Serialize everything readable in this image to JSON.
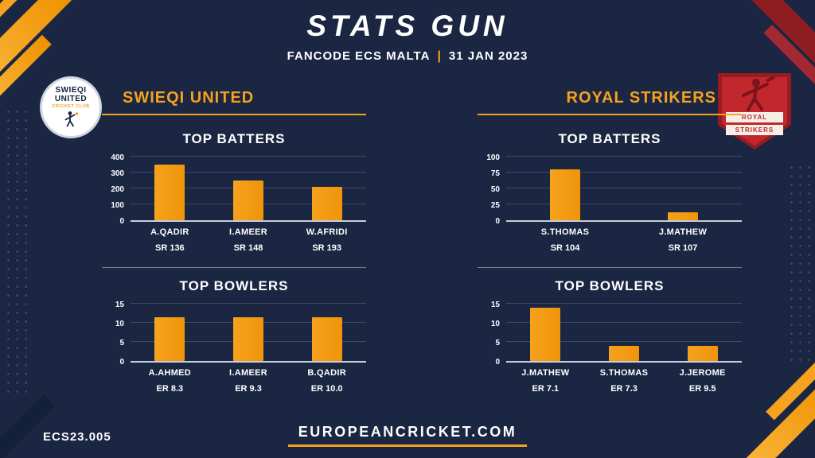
{
  "header": {
    "title": "STATS GUN",
    "event": "FANCODE ECS MALTA",
    "separator": "|",
    "date": "31 JAN 2023"
  },
  "teams": [
    {
      "name": "SWIEQI UNITED",
      "logo_line1": "SWIEQI",
      "logo_line2": "UNITED",
      "logo_line3": "CRICKET CLUB"
    },
    {
      "name": "ROYAL STRIKERS",
      "logo_line1": "ROYAL",
      "logo_line2": "STRIKERS"
    }
  ],
  "chart_data": [
    {
      "type": "bar",
      "team": "SWIEQI UNITED",
      "title": "TOP BATTERS",
      "categories": [
        "A.QADIR",
        "I.AMEER",
        "W.AFRIDI"
      ],
      "values": [
        350,
        250,
        210
      ],
      "sublabels": [
        "SR 136",
        "SR 148",
        "SR 193"
      ],
      "ylim": [
        0,
        400
      ],
      "yticks": [
        0,
        100,
        200,
        300,
        400
      ],
      "bar_color": "#f6a21e",
      "grid": true,
      "legend": "none"
    },
    {
      "type": "bar",
      "team": "SWIEQI UNITED",
      "title": "TOP BOWLERS",
      "categories": [
        "A.AHMED",
        "I.AMEER",
        "B.QADIR"
      ],
      "values": [
        11.5,
        11.5,
        11.5
      ],
      "sublabels": [
        "ER 8.3",
        "ER 9.3",
        "ER 10.0"
      ],
      "ylim": [
        0,
        15
      ],
      "yticks": [
        0,
        5,
        10,
        15
      ],
      "bar_color": "#f6a21e",
      "grid": true,
      "legend": "none"
    },
    {
      "type": "bar",
      "team": "ROYAL STRIKERS",
      "title": "TOP BATTERS",
      "categories": [
        "S.THOMAS",
        "J.MATHEW"
      ],
      "values": [
        80,
        13
      ],
      "sublabels": [
        "SR 104",
        "SR 107"
      ],
      "ylim": [
        0,
        100
      ],
      "yticks": [
        0,
        25,
        50,
        75,
        100
      ],
      "bar_color": "#f6a21e",
      "grid": true,
      "legend": "none"
    },
    {
      "type": "bar",
      "team": "ROYAL STRIKERS",
      "title": "TOP BOWLERS",
      "categories": [
        "J.MATHEW",
        "S.THOMAS",
        "J.JEROME"
      ],
      "values": [
        14,
        4,
        4
      ],
      "sublabels": [
        "ER 7.1",
        "ER 7.3",
        "ER 9.5"
      ],
      "ylim": [
        0,
        15
      ],
      "yticks": [
        0,
        5,
        10,
        15
      ],
      "bar_color": "#f6a21e",
      "grid": true,
      "legend": "none"
    }
  ],
  "footer": {
    "code": "ECS23.005",
    "site": "EUROPEANCRICKET.COM"
  },
  "colors": {
    "background": "#1a2642",
    "accent_orange": "#f6a21e",
    "logo_red": "#c1272d",
    "text": "#ffffff"
  }
}
